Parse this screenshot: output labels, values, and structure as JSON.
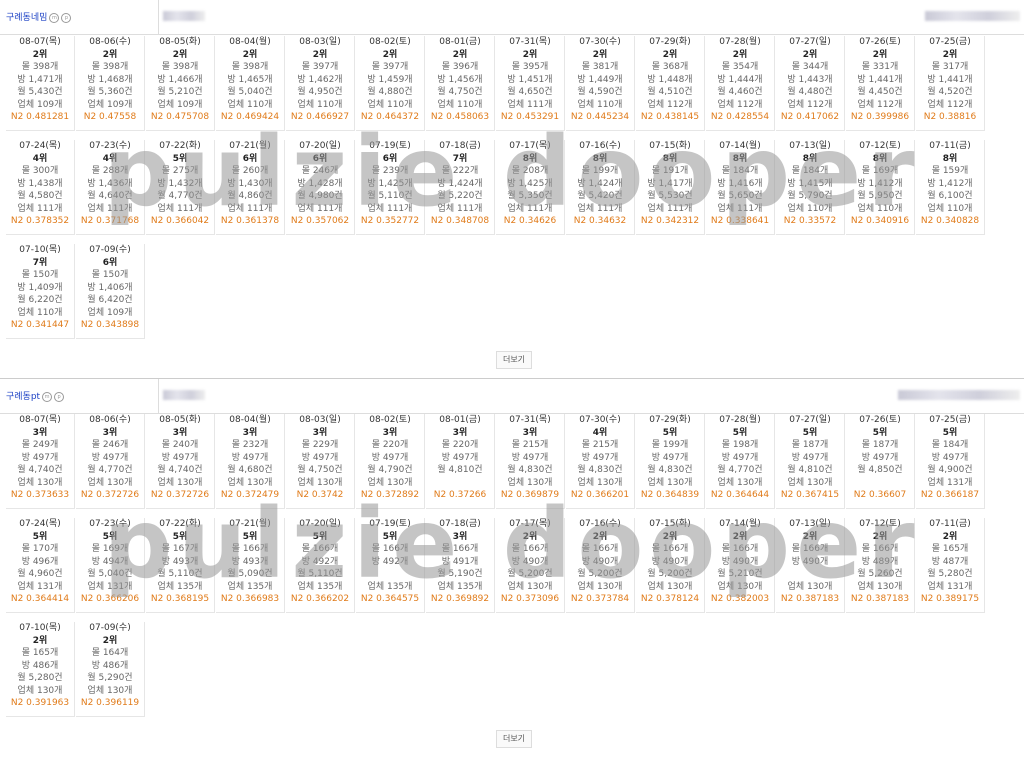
{
  "sections": [
    {
      "title": "구례동네밈",
      "more_label": "더보기",
      "rows": [
        [
          {
            "date": "08-07(목)",
            "rank": "2위",
            "a": "몰 398개",
            "b": "방 1,471개",
            "c": "월 5,430건",
            "d": "업체 109개",
            "n2": "N2 0.481281"
          },
          {
            "date": "08-06(수)",
            "rank": "2위",
            "a": "몰 398개",
            "b": "방 1,468개",
            "c": "월 5,360건",
            "d": "업체 109개",
            "n2": "N2 0.47558"
          },
          {
            "date": "08-05(화)",
            "rank": "2위",
            "a": "몰 398개",
            "b": "방 1,466개",
            "c": "월 5,210건",
            "d": "업체 109개",
            "n2": "N2 0.475708"
          },
          {
            "date": "08-04(월)",
            "rank": "2위",
            "a": "몰 398개",
            "b": "방 1,465개",
            "c": "월 5,040건",
            "d": "업체 110개",
            "n2": "N2 0.469424"
          },
          {
            "date": "08-03(일)",
            "rank": "2위",
            "a": "몰 397개",
            "b": "방 1,462개",
            "c": "월 4,950건",
            "d": "업체 110개",
            "n2": "N2 0.466927"
          },
          {
            "date": "08-02(토)",
            "rank": "2위",
            "a": "몰 397개",
            "b": "방 1,459개",
            "c": "월 4,880건",
            "d": "업체 110개",
            "n2": "N2 0.464372"
          },
          {
            "date": "08-01(금)",
            "rank": "2위",
            "a": "몰 396개",
            "b": "방 1,456개",
            "c": "월 4,750건",
            "d": "업체 110개",
            "n2": "N2 0.458063"
          },
          {
            "date": "07-31(목)",
            "rank": "2위",
            "a": "몰 395개",
            "b": "방 1,451개",
            "c": "월 4,650건",
            "d": "업체 111개",
            "n2": "N2 0.453291"
          },
          {
            "date": "07-30(수)",
            "rank": "2위",
            "a": "몰 381개",
            "b": "방 1,449개",
            "c": "월 4,590건",
            "d": "업체 110개",
            "n2": "N2 0.445234"
          },
          {
            "date": "07-29(화)",
            "rank": "2위",
            "a": "몰 368개",
            "b": "방 1,448개",
            "c": "월 4,510건",
            "d": "업체 112개",
            "n2": "N2 0.438145"
          },
          {
            "date": "07-28(월)",
            "rank": "2위",
            "a": "몰 354개",
            "b": "방 1,444개",
            "c": "월 4,460건",
            "d": "업체 112개",
            "n2": "N2 0.428554"
          },
          {
            "date": "07-27(일)",
            "rank": "2위",
            "a": "몰 344개",
            "b": "방 1,443개",
            "c": "월 4,480건",
            "d": "업체 112개",
            "n2": "N2 0.417062"
          },
          {
            "date": "07-26(토)",
            "rank": "2위",
            "a": "몰 331개",
            "b": "방 1,441개",
            "c": "월 4,450건",
            "d": "업체 112개",
            "n2": "N2 0.399986"
          },
          {
            "date": "07-25(금)",
            "rank": "2위",
            "a": "몰 317개",
            "b": "방 1,441개",
            "c": "월 4,520건",
            "d": "업체 112개",
            "n2": "N2 0.38816"
          }
        ],
        [
          {
            "date": "07-24(목)",
            "rank": "4위",
            "a": "몰 300개",
            "b": "방 1,438개",
            "c": "월 4,580건",
            "d": "업체 111개",
            "n2": "N2 0.378352"
          },
          {
            "date": "07-23(수)",
            "rank": "4위",
            "a": "몰 288개",
            "b": "방 1,436개",
            "c": "월 4,640건",
            "d": "업체 111개",
            "n2": "N2 0.371768"
          },
          {
            "date": "07-22(화)",
            "rank": "5위",
            "a": "몰 275개",
            "b": "방 1,432개",
            "c": "월 4,770건",
            "d": "업체 111개",
            "n2": "N2 0.366042"
          },
          {
            "date": "07-21(월)",
            "rank": "6위",
            "a": "몰 260개",
            "b": "방 1,430개",
            "c": "월 4,860건",
            "d": "업체 111개",
            "n2": "N2 0.361378"
          },
          {
            "date": "07-20(일)",
            "rank": "6위",
            "a": "몰 246개",
            "b": "방 1,428개",
            "c": "월 4,980건",
            "d": "업체 111개",
            "n2": "N2 0.357062"
          },
          {
            "date": "07-19(토)",
            "rank": "6위",
            "a": "몰 239개",
            "b": "방 1,425개",
            "c": "월 5,110건",
            "d": "업체 111개",
            "n2": "N2 0.352772"
          },
          {
            "date": "07-18(금)",
            "rank": "7위",
            "a": "몰 222개",
            "b": "방 1,424개",
            "c": "월 5,220건",
            "d": "업체 111개",
            "n2": "N2 0.348708"
          },
          {
            "date": "07-17(목)",
            "rank": "8위",
            "a": "몰 208개",
            "b": "방 1,425개",
            "c": "월 5,350건",
            "d": "업체 111개",
            "n2": "N2 0.34626"
          },
          {
            "date": "07-16(수)",
            "rank": "8위",
            "a": "몰 199개",
            "b": "방 1,424개",
            "c": "월 5,420건",
            "d": "업체 111개",
            "n2": "N2 0.34632"
          },
          {
            "date": "07-15(화)",
            "rank": "8위",
            "a": "몰 191개",
            "b": "방 1,417개",
            "c": "월 5,530건",
            "d": "업체 111개",
            "n2": "N2 0.342312"
          },
          {
            "date": "07-14(월)",
            "rank": "8위",
            "a": "몰 184개",
            "b": "방 1,416개",
            "c": "월 5,650건",
            "d": "업체 111개",
            "n2": "N2 0.338641"
          },
          {
            "date": "07-13(일)",
            "rank": "8위",
            "a": "몰 184개",
            "b": "방 1,415개",
            "c": "월 5,790건",
            "d": "업체 110개",
            "n2": "N2 0.33572"
          },
          {
            "date": "07-12(토)",
            "rank": "8위",
            "a": "몰 169개",
            "b": "방 1,412개",
            "c": "월 5,950건",
            "d": "업체 110개",
            "n2": "N2 0.340916"
          },
          {
            "date": "07-11(금)",
            "rank": "8위",
            "a": "몰 159개",
            "b": "방 1,412개",
            "c": "월 6,100건",
            "d": "업체 110개",
            "n2": "N2 0.340828"
          }
        ],
        [
          {
            "date": "07-10(목)",
            "rank": "7위",
            "a": "몰 150개",
            "b": "방 1,409개",
            "c": "월 6,220건",
            "d": "업체 110개",
            "n2": "N2 0.341447"
          },
          {
            "date": "07-09(수)",
            "rank": "6위",
            "a": "몰 150개",
            "b": "방 1,406개",
            "c": "월 6,420건",
            "d": "업체 109개",
            "n2": "N2 0.343898"
          }
        ]
      ]
    },
    {
      "title": "구례동pt",
      "more_label": "더보기",
      "rows": [
        [
          {
            "date": "08-07(목)",
            "rank": "3위",
            "a": "몰 249개",
            "b": "방 497개",
            "c": "월 4,740건",
            "d": "업체 130개",
            "n2": "N2 0.373633"
          },
          {
            "date": "08-06(수)",
            "rank": "3위",
            "a": "몰 246개",
            "b": "방 497개",
            "c": "월 4,770건",
            "d": "업체 130개",
            "n2": "N2 0.372726"
          },
          {
            "date": "08-05(화)",
            "rank": "3위",
            "a": "몰 240개",
            "b": "방 497개",
            "c": "월 4,740건",
            "d": "업체 130개",
            "n2": "N2 0.372726"
          },
          {
            "date": "08-04(월)",
            "rank": "3위",
            "a": "몰 232개",
            "b": "방 497개",
            "c": "월 4,680건",
            "d": "업체 130개",
            "n2": "N2 0.372479"
          },
          {
            "date": "08-03(일)",
            "rank": "3위",
            "a": "몰 229개",
            "b": "방 497개",
            "c": "월 4,750건",
            "d": "업체 130개",
            "n2": "N2 0.3742"
          },
          {
            "date": "08-02(토)",
            "rank": "3위",
            "a": "몰 220개",
            "b": "방 497개",
            "c": "월 4,790건",
            "d": "업체 130개",
            "n2": "N2 0.372892"
          },
          {
            "date": "08-01(금)",
            "rank": "3위",
            "a": "몰 220개",
            "b": "방 497개",
            "c": "월 4,810건",
            "d": "",
            "n2": "N2 0.37266"
          },
          {
            "date": "07-31(목)",
            "rank": "3위",
            "a": "몰 215개",
            "b": "방 497개",
            "c": "월 4,830건",
            "d": "업체 130개",
            "n2": "N2 0.369879"
          },
          {
            "date": "07-30(수)",
            "rank": "4위",
            "a": "몰 215개",
            "b": "방 497개",
            "c": "월 4,830건",
            "d": "업체 130개",
            "n2": "N2 0.366201"
          },
          {
            "date": "07-29(화)",
            "rank": "5위",
            "a": "몰 199개",
            "b": "방 497개",
            "c": "월 4,830건",
            "d": "업체 130개",
            "n2": "N2 0.364839"
          },
          {
            "date": "07-28(월)",
            "rank": "5위",
            "a": "몰 198개",
            "b": "방 497개",
            "c": "월 4,770건",
            "d": "업체 130개",
            "n2": "N2 0.364644"
          },
          {
            "date": "07-27(일)",
            "rank": "5위",
            "a": "몰 187개",
            "b": "방 497개",
            "c": "월 4,810건",
            "d": "업체 130개",
            "n2": "N2 0.367415"
          },
          {
            "date": "07-26(토)",
            "rank": "5위",
            "a": "몰 187개",
            "b": "방 497개",
            "c": "월 4,850건",
            "d": "",
            "n2": "N2 0.36607"
          },
          {
            "date": "07-25(금)",
            "rank": "5위",
            "a": "몰 184개",
            "b": "방 497개",
            "c": "월 4,900건",
            "d": "업체 131개",
            "n2": "N2 0.366187"
          }
        ],
        [
          {
            "date": "07-24(목)",
            "rank": "5위",
            "a": "몰 170개",
            "b": "방 496개",
            "c": "월 4,960건",
            "d": "업체 131개",
            "n2": "N2 0.364414"
          },
          {
            "date": "07-23(수)",
            "rank": "5위",
            "a": "몰 169개",
            "b": "방 494개",
            "c": "월 5,040건",
            "d": "업체 131개",
            "n2": "N2 0.366206"
          },
          {
            "date": "07-22(화)",
            "rank": "5위",
            "a": "몰 167개",
            "b": "방 493개",
            "c": "월 5,110건",
            "d": "업체 135개",
            "n2": "N2 0.368195"
          },
          {
            "date": "07-21(월)",
            "rank": "5위",
            "a": "몰 166개",
            "b": "방 493개",
            "c": "월 5,090건",
            "d": "업체 135개",
            "n2": "N2 0.366983"
          },
          {
            "date": "07-20(일)",
            "rank": "5위",
            "a": "몰 166개",
            "b": "방 492개",
            "c": "월 5,110건",
            "d": "업체 135개",
            "n2": "N2 0.366202"
          },
          {
            "date": "07-19(토)",
            "rank": "5위",
            "a": "몰 166개",
            "b": "방 492개",
            "c": "",
            "d": "업체 135개",
            "n2": "N2 0.364575"
          },
          {
            "date": "07-18(금)",
            "rank": "3위",
            "a": "몰 166개",
            "b": "방 491개",
            "c": "월 5,190건",
            "d": "업체 135개",
            "n2": "N2 0.369892"
          },
          {
            "date": "07-17(목)",
            "rank": "2위",
            "a": "몰 166개",
            "b": "방 490개",
            "c": "월 5,200건",
            "d": "업체 130개",
            "n2": "N2 0.373096"
          },
          {
            "date": "07-16(수)",
            "rank": "2위",
            "a": "몰 166개",
            "b": "방 490개",
            "c": "월 5,200건",
            "d": "업체 130개",
            "n2": "N2 0.373784"
          },
          {
            "date": "07-15(화)",
            "rank": "2위",
            "a": "몰 166개",
            "b": "방 490개",
            "c": "월 5,200건",
            "d": "업체 130개",
            "n2": "N2 0.378124"
          },
          {
            "date": "07-14(월)",
            "rank": "2위",
            "a": "몰 166개",
            "b": "방 490개",
            "c": "월 5,210건",
            "d": "업체 130개",
            "n2": "N2 0.382003"
          },
          {
            "date": "07-13(일)",
            "rank": "2위",
            "a": "몰 166개",
            "b": "방 490개",
            "c": "",
            "d": "업체 130개",
            "n2": "N2 0.387183"
          },
          {
            "date": "07-12(토)",
            "rank": "2위",
            "a": "몰 166개",
            "b": "방 489개",
            "c": "월 5,260건",
            "d": "업체 130개",
            "n2": "N2 0.387183"
          },
          {
            "date": "07-11(금)",
            "rank": "2위",
            "a": "몰 165개",
            "b": "방 487개",
            "c": "월 5,280건",
            "d": "업체 131개",
            "n2": "N2 0.389175"
          }
        ],
        [
          {
            "date": "07-10(목)",
            "rank": "2위",
            "a": "몰 165개",
            "b": "방 486개",
            "c": "월 5,280건",
            "d": "업체 130개",
            "n2": "N2 0.391963"
          },
          {
            "date": "07-09(수)",
            "rank": "2위",
            "a": "몰 164개",
            "b": "방 486개",
            "c": "월 5,290건",
            "d": "업체 130개",
            "n2": "N2 0.396119"
          }
        ]
      ]
    }
  ],
  "watermark": "pulzie dooper",
  "colors": {
    "title": "#1a3fc4",
    "n2": "#e07b1a"
  }
}
